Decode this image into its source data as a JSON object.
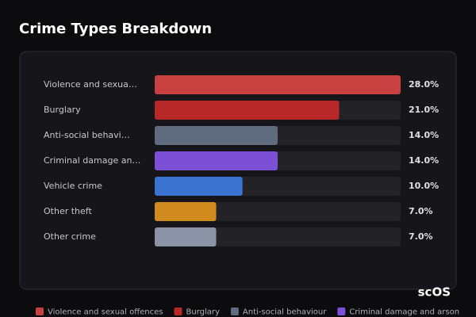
{
  "chart_data": {
    "type": "hbar",
    "title": "Crime Types Breakdown",
    "categories": [
      "Violence and sexua…",
      "Burglary",
      "Anti-social behavi…",
      "Criminal damage an…",
      "Vehicle crime",
      "Other theft",
      "Other crime"
    ],
    "values": [
      28.0,
      21.0,
      14.0,
      14.0,
      10.0,
      7.0,
      7.0
    ],
    "value_labels": [
      "28.0%",
      "21.0%",
      "14.0%",
      "14.0%",
      "10.0%",
      "7.0%",
      "7.0%"
    ],
    "colors": [
      "#c94040",
      "#b82828",
      "#5f6b7e",
      "#7b4fd6",
      "#3a74d0",
      "#d08a1e",
      "#8a94a6"
    ],
    "xlim": [
      0,
      28
    ],
    "legend": [
      "Violence and sexual offences",
      "Burglary",
      "Anti-social behaviour",
      "Criminal damage and arson"
    ],
    "watermark": "scOS"
  }
}
